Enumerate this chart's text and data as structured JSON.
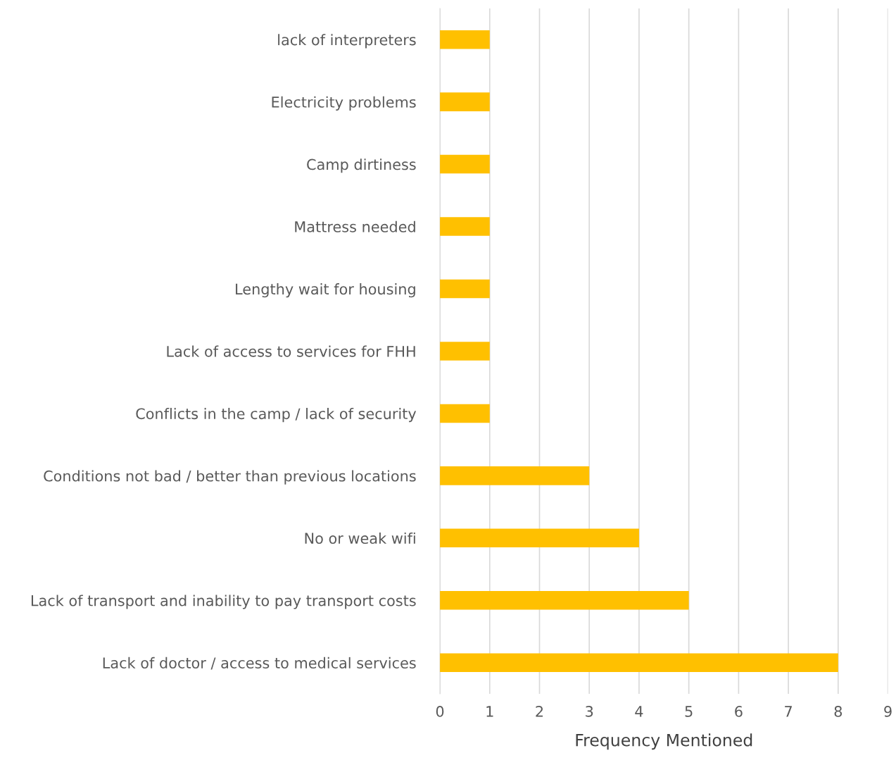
{
  "chart_data": {
    "type": "bar",
    "orientation": "horizontal",
    "xlabel": "Frequency Mentioned",
    "categories": [
      "lack of interpreters",
      "Electricity problems",
      "Camp dirtiness",
      "Mattress needed",
      "Lengthy wait for housing",
      "Lack of access to services for FHH",
      "Conflicts in the camp / lack of security",
      "Conditions not bad / better than previous locations",
      "No or weak wifi",
      "Lack of transport and inability to pay transport costs",
      "Lack of doctor / access to medical services"
    ],
    "values": [
      1,
      1,
      1,
      1,
      1,
      1,
      1,
      3,
      4,
      5,
      8
    ],
    "color": "#ffc000",
    "xlim": [
      0,
      9
    ],
    "xticks": [
      0,
      1,
      2,
      3,
      4,
      5,
      6,
      7,
      8,
      9
    ],
    "grid": "x",
    "legend": false
  }
}
